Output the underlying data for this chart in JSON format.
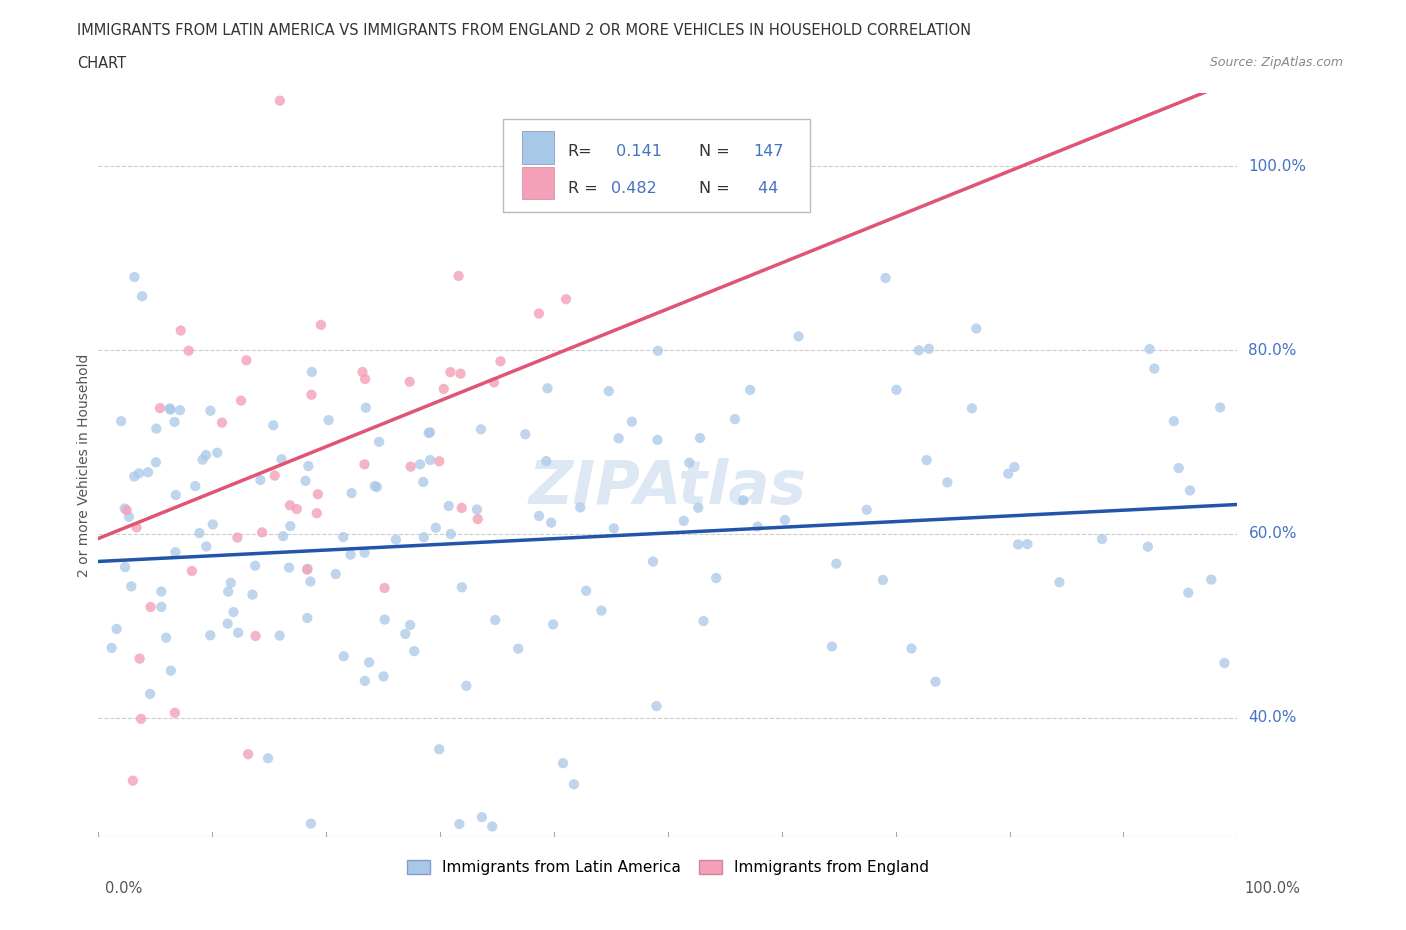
{
  "title_line1": "IMMIGRANTS FROM LATIN AMERICA VS IMMIGRANTS FROM ENGLAND 2 OR MORE VEHICLES IN HOUSEHOLD CORRELATION",
  "title_line2": "CHART",
  "source": "Source: ZipAtlas.com",
  "ylabel": "2 or more Vehicles in Household",
  "blue_color": "#a8c8e8",
  "pink_color": "#f4a0b8",
  "blue_line_color": "#2255aa",
  "pink_line_color": "#e05575",
  "watermark": "ZIPAtlas",
  "blue_R": 0.141,
  "blue_N": 147,
  "pink_R": 0.482,
  "pink_N": 44,
  "background_color": "#ffffff",
  "grid_color": "#cccccc",
  "tick_color": "#4472c4",
  "ytick_positions": [
    0.4,
    0.6,
    0.8,
    1.0
  ],
  "ytick_labels": [
    "40.0%",
    "60.0%",
    "80.0%",
    "100.0%"
  ],
  "xlim": [
    0.0,
    1.0
  ],
  "ylim": [
    0.27,
    1.08
  ]
}
